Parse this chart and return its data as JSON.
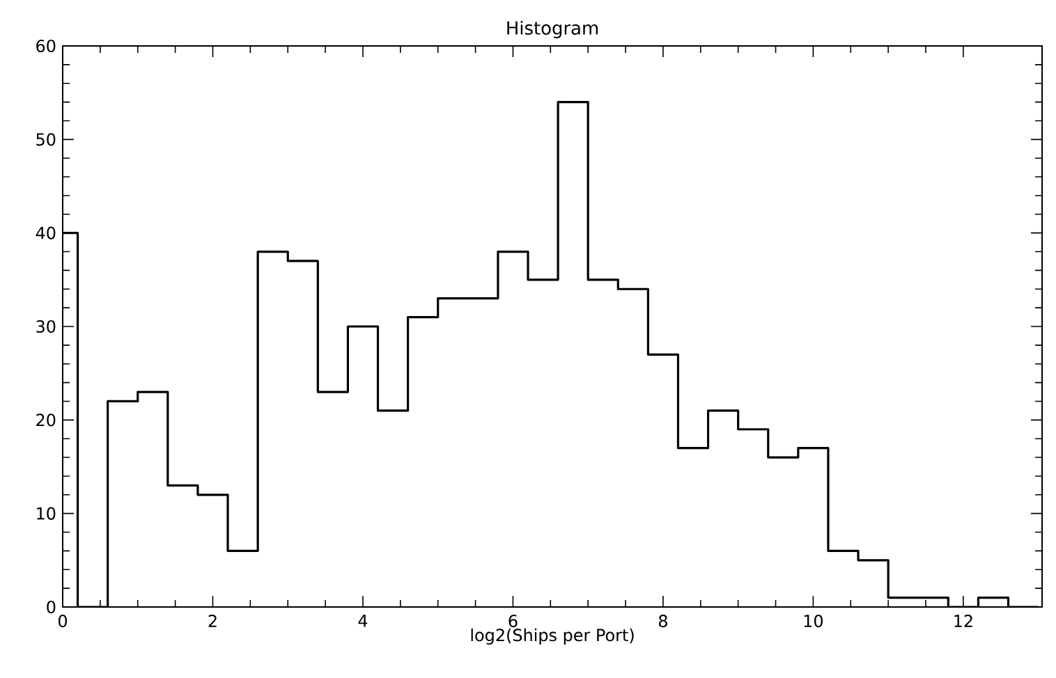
{
  "chart_data": {
    "type": "histogram",
    "title": "Histogram",
    "xlabel": "log2(Ships per Port)",
    "bins": [
      0,
      0.2,
      0.6,
      1.0,
      1.4,
      1.8,
      2.2,
      2.6,
      3.0,
      3.4,
      3.8,
      4.2,
      4.6,
      5.0,
      5.4,
      5.8,
      6.2,
      6.6,
      7.0,
      7.4,
      7.8,
      8.2,
      8.6,
      9.0,
      9.4,
      9.8,
      10.2,
      10.6,
      11.0,
      11.4,
      11.8,
      12.2,
      12.6,
      13.0
    ],
    "values": [
      40,
      0,
      22,
      23,
      13,
      12,
      6,
      38,
      37,
      23,
      30,
      21,
      31,
      33,
      33,
      38,
      35,
      54,
      35,
      34,
      27,
      17,
      21,
      19,
      16,
      17,
      6,
      5,
      1,
      1,
      0,
      1,
      0
    ],
    "color": "#000000",
    "xlim": [
      0,
      13.05
    ],
    "ylim": [
      0,
      60
    ],
    "xticks": [
      0,
      2,
      4,
      6,
      8,
      10,
      12
    ],
    "yticks": [
      0,
      10,
      20,
      30,
      40,
      50,
      60
    ],
    "grid": false
  }
}
